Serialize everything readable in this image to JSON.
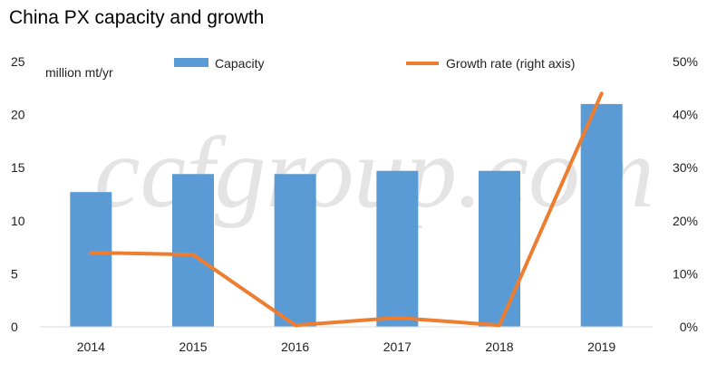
{
  "chart_data": {
    "type": "bar",
    "title": "China PX capacity and growth",
    "categories": [
      "2014",
      "2015",
      "2016",
      "2017",
      "2018",
      "2019"
    ],
    "series": [
      {
        "name": "Capacity",
        "kind": "bar",
        "axis": "left",
        "color": "#5b9bd5",
        "values": [
          12.7,
          14.4,
          14.4,
          14.7,
          14.7,
          21.0
        ]
      },
      {
        "name": "Growth rate (right axis)",
        "kind": "line",
        "axis": "right",
        "color": "#ed7d31",
        "values": [
          14,
          13.6,
          0.3,
          1.7,
          0.3,
          44
        ]
      }
    ],
    "ylabel": "million mt/yr",
    "ylim": [
      0,
      25
    ],
    "yticks": [
      "0",
      "5",
      "10",
      "15",
      "20",
      "25"
    ],
    "y2lim": [
      0,
      50
    ],
    "y2ticks": [
      "0%",
      "10%",
      "20%",
      "30%",
      "40%",
      "50%"
    ],
    "grid": false,
    "legend": "top",
    "watermark": "ccfgroup.com"
  }
}
